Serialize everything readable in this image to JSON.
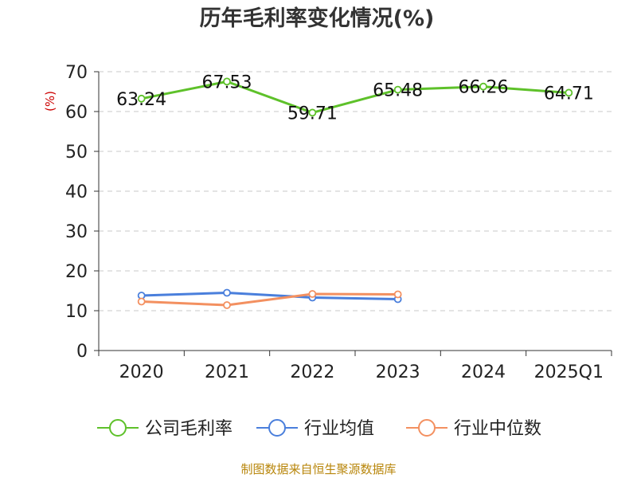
{
  "chart_data": {
    "type": "line",
    "title": "历年毛利率变化情况(%)",
    "ylabel": "(%)",
    "xlabel": "",
    "categories": [
      "2020",
      "2021",
      "2022",
      "2023",
      "2024",
      "2025Q1"
    ],
    "ylim": [
      0,
      70
    ],
    "yticks": [
      0,
      10,
      20,
      30,
      40,
      50,
      60,
      70
    ],
    "grid": true,
    "legend_position": "bottom",
    "series": [
      {
        "name": "公司毛利率",
        "color": "#5ec12a",
        "values": [
          63.24,
          67.53,
          59.71,
          65.48,
          66.26,
          64.71
        ],
        "value_labels": [
          "63.24",
          "67.53",
          "59.71",
          "65.48",
          "66.26",
          "64.71"
        ]
      },
      {
        "name": "行业均值",
        "color": "#4a7fdc",
        "values": [
          13.8,
          14.5,
          13.3,
          12.9,
          null,
          null
        ]
      },
      {
        "name": "行业中位数",
        "color": "#f39060",
        "values": [
          12.3,
          11.4,
          14.2,
          14.1,
          null,
          null
        ]
      }
    ]
  },
  "footer": {
    "source": "制图数据来自恒生聚源数据库"
  }
}
